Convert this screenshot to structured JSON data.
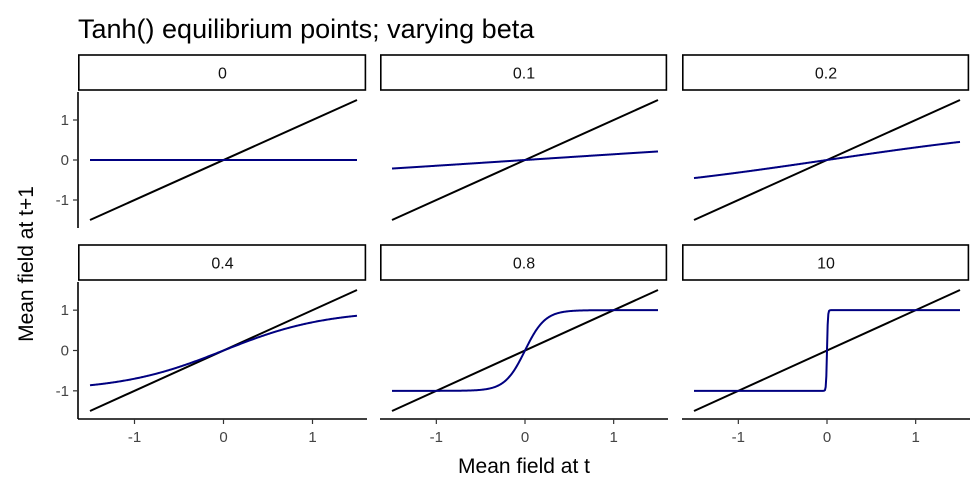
{
  "chart_data": {
    "type": "line",
    "title": "Tanh() equilibrium points; varying beta",
    "xlabel": "Mean field at t",
    "ylabel": "Mean field at t+1",
    "xlim": [
      -1.5,
      1.5
    ],
    "ylim": [
      -1.5,
      1.5
    ],
    "x_ticks": [
      -1,
      0,
      1
    ],
    "y_ticks": [
      -1,
      0,
      1
    ],
    "grid": false,
    "line_colors": {
      "tanh_curve": "#000080",
      "identity_line": "#000000"
    },
    "panels": [
      {
        "label": "0",
        "beta": 0
      },
      {
        "label": "0.1",
        "beta": 0.1
      },
      {
        "label": "0.2",
        "beta": 0.2
      },
      {
        "label": "0.4",
        "beta": 0.4
      },
      {
        "label": "0.8",
        "beta": 0.8
      },
      {
        "label": "10",
        "beta": 10
      }
    ]
  }
}
